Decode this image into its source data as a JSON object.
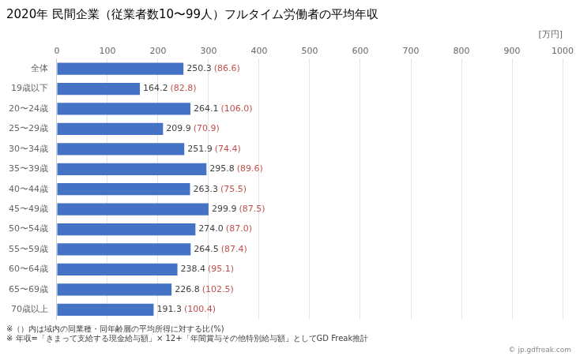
{
  "chart_data": {
    "type": "bar",
    "orientation": "horizontal",
    "title": "2020年 民間企業（従業者数10〜99人）フルタイム労働者の平均年収",
    "xlabel": "[万円]",
    "categories": [
      "全体",
      "19歳以下",
      "20〜24歳",
      "25〜29歳",
      "30〜34歳",
      "35〜39歳",
      "40〜44歳",
      "45〜49歳",
      "50〜54歳",
      "55〜59歳",
      "60〜64歳",
      "65〜69歳",
      "70歳以上"
    ],
    "values": [
      250.3,
      164.2,
      264.1,
      209.9,
      251.9,
      295.8,
      263.3,
      299.9,
      274.0,
      264.5,
      238.4,
      226.8,
      191.3
    ],
    "value_labels": [
      "250.3",
      "164.2",
      "264.1",
      "209.9",
      "251.9",
      "295.8",
      "263.3",
      "299.9",
      "274.0",
      "264.5",
      "238.4",
      "226.8",
      "191.3"
    ],
    "ratios": [
      86.6,
      82.8,
      106.0,
      70.9,
      74.4,
      89.6,
      75.5,
      87.5,
      87.0,
      87.4,
      95.1,
      102.5,
      100.4
    ],
    "ratio_labels": [
      "(86.6)",
      "(82.8)",
      "(106.0)",
      "(70.9)",
      "(74.4)",
      "(89.6)",
      "(75.5)",
      "(87.5)",
      "(87.0)",
      "(87.4)",
      "(95.1)",
      "(102.5)",
      "(100.4)"
    ],
    "color": "#4472C4",
    "ratio_color": "#C0504D",
    "data_labels": true,
    "xlim": [
      0,
      1000
    ],
    "xticks": [
      0,
      100,
      200,
      300,
      400,
      500,
      600,
      700,
      800,
      900,
      1000
    ],
    "grid": true,
    "notes": [
      "※（）内は域内の同業種・同年齢層の平均所得に対する比(%)",
      "※ 年収=「きまって支給する現金給与額」× 12+「年間賞与その他特別給与額」としてGD Freak推計"
    ],
    "watermark": "© jp.gdfreak.com"
  }
}
